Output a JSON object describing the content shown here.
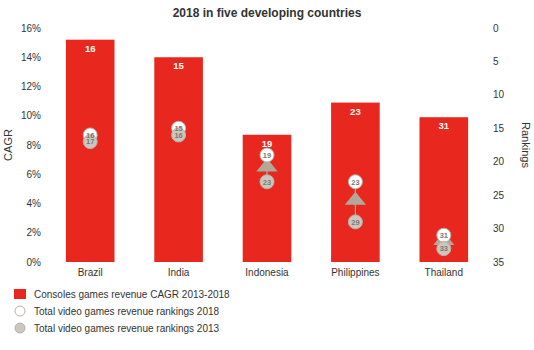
{
  "chart_data": {
    "type": "bar",
    "title": "2018 in five developing countries",
    "categories": [
      "Brazil",
      "India",
      "Indonesia",
      "Philippines",
      "Thailand"
    ],
    "ylabel": "CAGR",
    "y2label": "Rankings",
    "ylim": [
      0,
      0.16
    ],
    "yticks": [
      {
        "value": 0.0,
        "label": "0%"
      },
      {
        "value": 0.02,
        "label": "2%"
      },
      {
        "value": 0.04,
        "label": "4%"
      },
      {
        "value": 0.06,
        "label": "6%"
      },
      {
        "value": 0.08,
        "label": "8%"
      },
      {
        "value": 0.1,
        "label": "10%"
      },
      {
        "value": 0.12,
        "label": "12%"
      },
      {
        "value": 0.14,
        "label": "14%"
      },
      {
        "value": 0.16,
        "label": "16%"
      }
    ],
    "y2lim": [
      35,
      0
    ],
    "y2ticks": [
      0,
      5,
      10,
      15,
      20,
      25,
      30,
      35
    ],
    "grid": false,
    "legend": "bottom",
    "series": [
      {
        "name": "Consoles games revenue CAGR 2013-2018",
        "type": "bar",
        "color": "#e8281e",
        "values": [
          0.152,
          0.14,
          0.087,
          0.109,
          0.099
        ]
      },
      {
        "name": "Total video games revenue rankings 2018",
        "type": "scatter",
        "marker": "circle",
        "axis": "y2",
        "color": "#ffffff",
        "data_labels": true,
        "values": [
          16,
          15,
          19,
          23,
          31
        ]
      },
      {
        "name": "Total video games revenue rankings 2013",
        "type": "scatter",
        "marker": "circle",
        "axis": "y2",
        "color": "#ccc7be",
        "data_labels": true,
        "values": [
          17,
          16,
          23,
          29,
          33
        ]
      }
    ]
  }
}
